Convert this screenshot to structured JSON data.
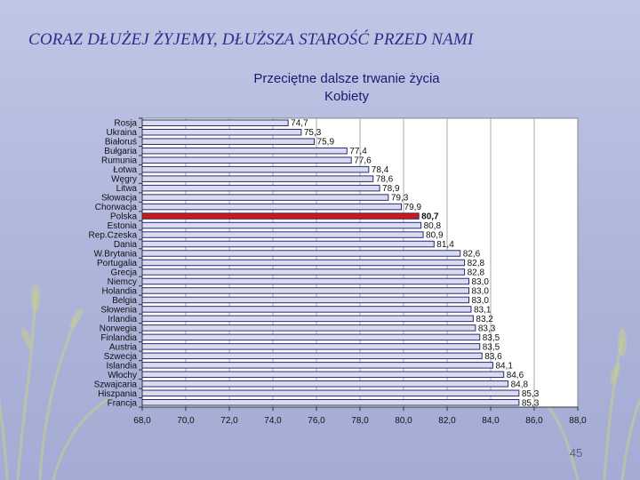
{
  "slide": {
    "title": "CORAZ DŁUŻEJ ŻYJEMY, DŁUŻSZA STAROŚĆ PRZED NAMI",
    "page_number": "45"
  },
  "colors": {
    "bar": "#d9dcf0",
    "bar_highlight": "#cc1a1a",
    "title": "#2b2f8a",
    "plot_bg": "#ffffff"
  },
  "chart_data": {
    "type": "bar",
    "orientation": "horizontal",
    "title": "Przeciętne dalsze trwanie życia",
    "subtitle": "Kobiety",
    "xlim": [
      68.0,
      88.0
    ],
    "x_ticks": [
      "68,0",
      "70,0",
      "72,0",
      "74,0",
      "76,0",
      "78,0",
      "80,0",
      "82,0",
      "84,0",
      "86,0",
      "88,0"
    ],
    "grid": true,
    "highlight": "Polska",
    "categories": [
      "Rosja",
      "Ukraina",
      "Białoruś",
      "Bułgaria",
      "Rumunia",
      "Łotwa",
      "Węgry",
      "Litwa",
      "Słowacja",
      "Chorwacja",
      "Polska",
      "Estonia",
      "Rep.Czeska",
      "Dania",
      "W.Brytania",
      "Portugalia",
      "Grecja",
      "Niemcy",
      "Holandia",
      "Belgia",
      "Słowenia",
      "Irlandia",
      "Norwegia",
      "Finlandia",
      "Austria",
      "Szwecja",
      "Islandia",
      "Włochy",
      "Szwajcaria",
      "Hiszpania",
      "Francja"
    ],
    "values": [
      74.7,
      75.3,
      75.9,
      77.4,
      77.6,
      78.4,
      78.6,
      78.9,
      79.3,
      79.9,
      80.7,
      80.8,
      80.9,
      81.4,
      82.6,
      82.8,
      82.8,
      83.0,
      83.0,
      83.0,
      83.1,
      83.2,
      83.3,
      83.5,
      83.5,
      83.6,
      84.1,
      84.6,
      84.8,
      85.3,
      85.3
    ],
    "value_labels": [
      "74,7",
      "75,3",
      "75,9",
      "77,4",
      "77,6",
      "78,4",
      "78,6",
      "78,9",
      "79,3",
      "79,9",
      "80,7",
      "80,8",
      "80,9",
      "81,4",
      "82,6",
      "82,8",
      "82,8",
      "83,0",
      "83,0",
      "83,0",
      "83,1",
      "83,2",
      "83,3",
      "83,5",
      "83,5",
      "83,6",
      "84,1",
      "84,6",
      "84,8",
      "85,3",
      "85,3"
    ]
  }
}
